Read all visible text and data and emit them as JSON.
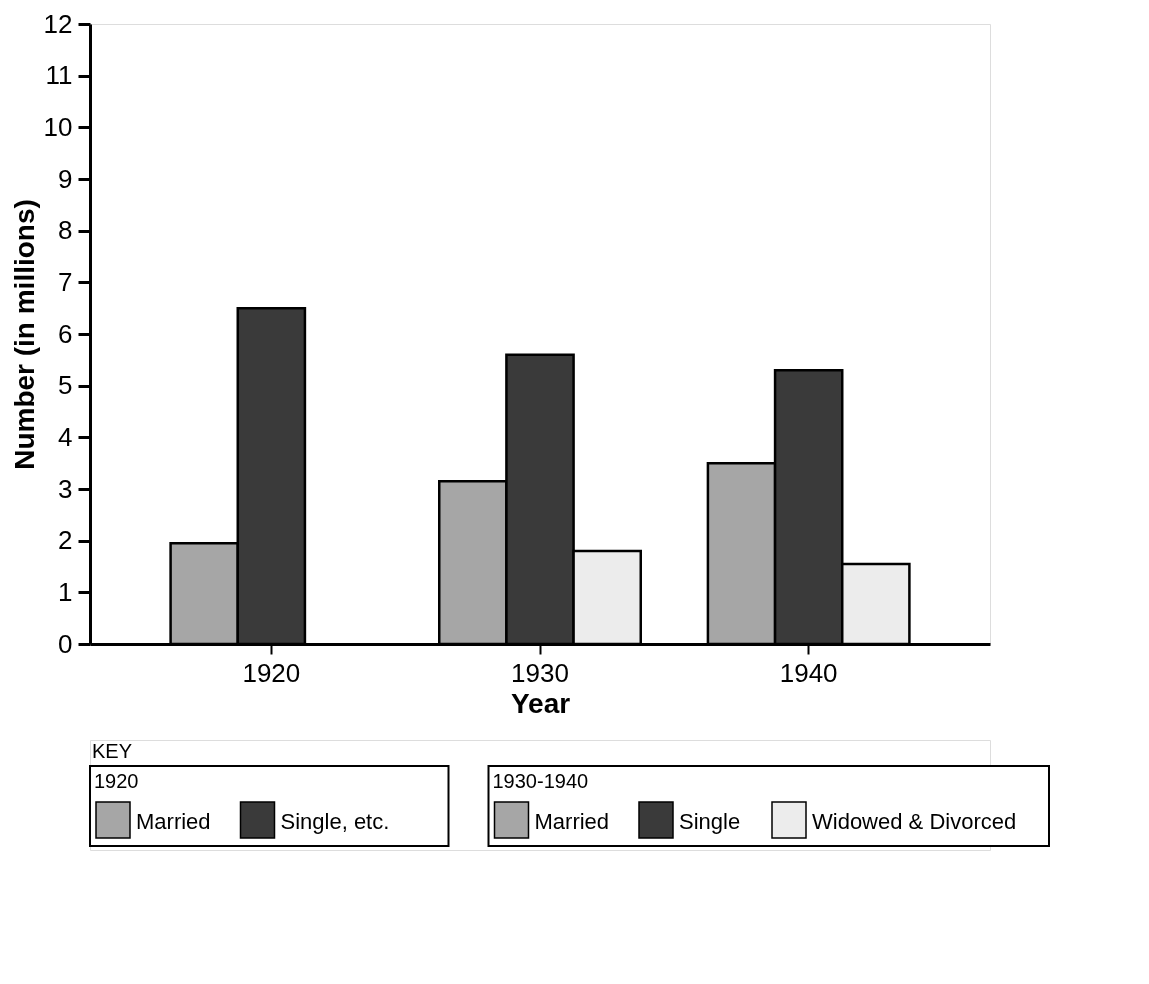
{
  "chart_data": {
    "type": "bar",
    "xlabel": "Year",
    "ylabel": "Number (in millions)",
    "legend_title": "KEY",
    "categories": [
      "1920",
      "1930",
      "1940"
    ],
    "series": [
      {
        "name": "Married",
        "color": "#a6a6a6",
        "values": [
          1.95,
          null,
          null
        ]
      },
      {
        "name": "Single, etc.",
        "color": "#3a3a3a",
        "values": [
          6.5,
          null,
          null
        ]
      },
      {
        "name": "Married",
        "color": "#a6a6a6",
        "values": [
          null,
          3.15,
          3.5
        ]
      },
      {
        "name": "Single",
        "color": "#3a3a3a",
        "values": [
          null,
          5.6,
          5.3
        ]
      },
      {
        "name": "Widowed & Divorced",
        "color": "#ececec",
        "values": [
          null,
          1.8,
          1.55
        ]
      }
    ],
    "annotations": [
      "1920",
      "1930-1940"
    ],
    "ylim": [
      0,
      12
    ],
    "yticks": [
      0,
      1,
      2,
      3,
      4,
      5,
      6,
      7,
      8,
      9,
      10,
      11,
      12
    ],
    "grid": false,
    "legend": "bottom"
  }
}
